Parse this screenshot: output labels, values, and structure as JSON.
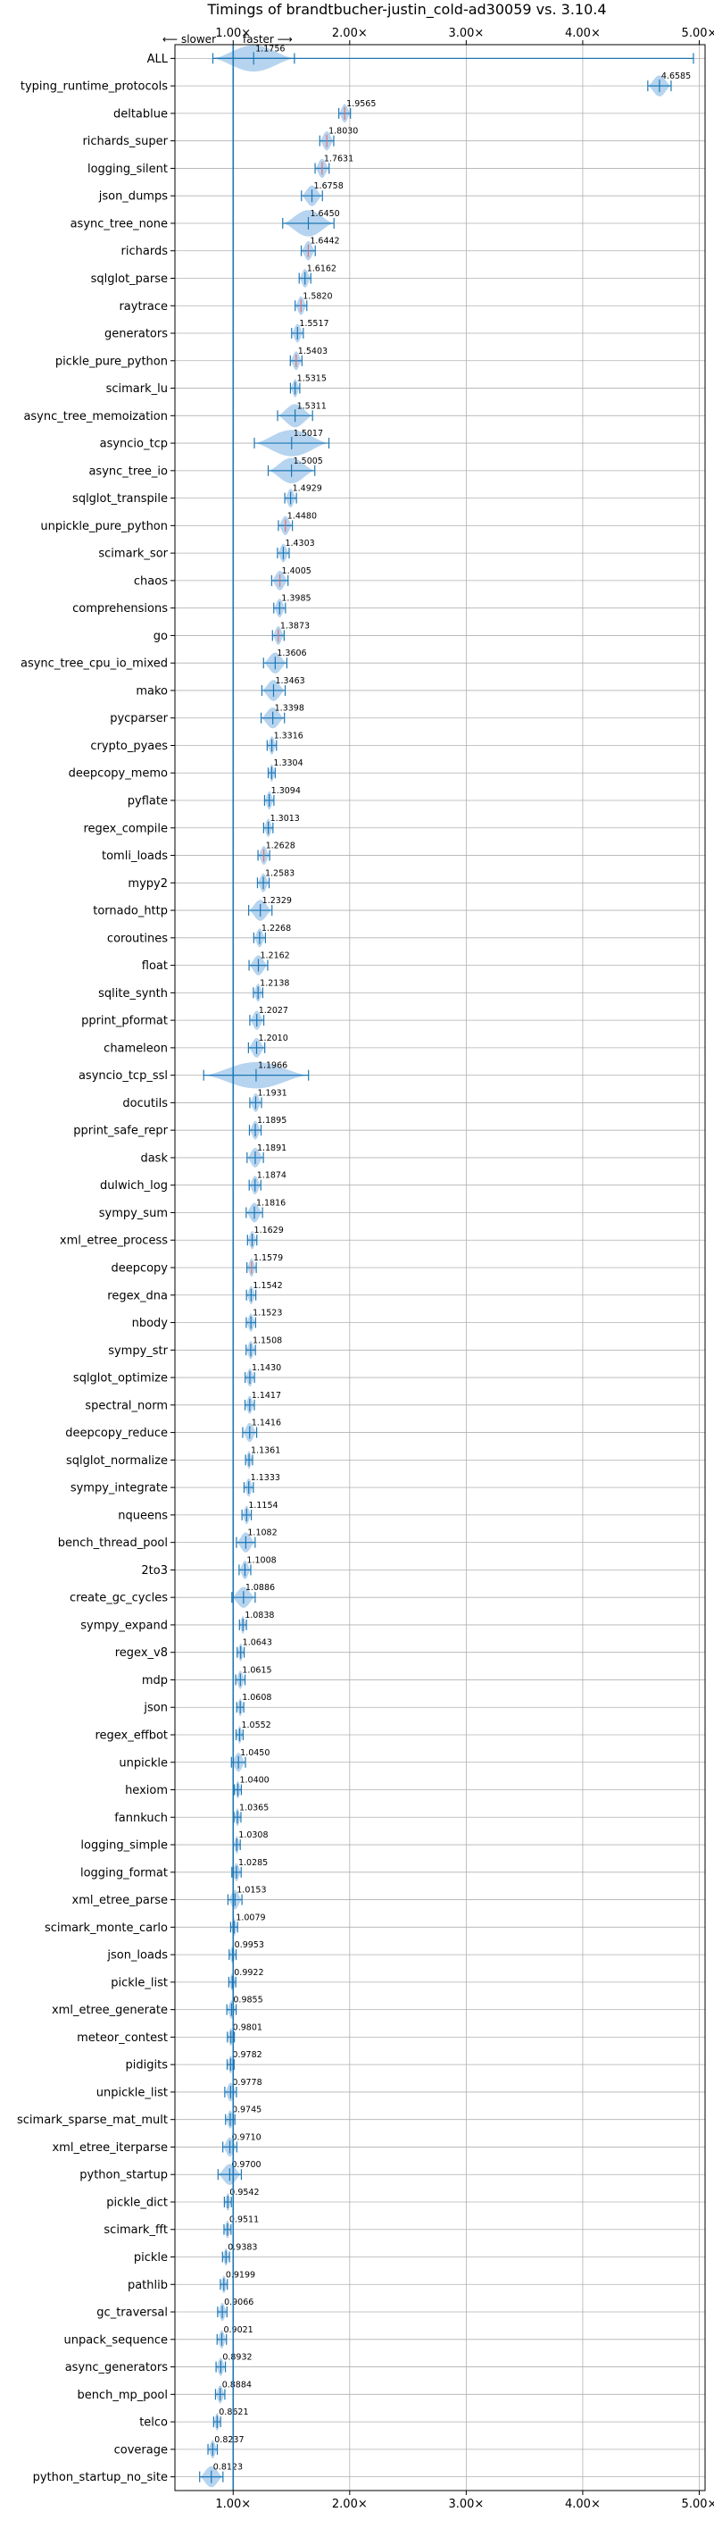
{
  "chart_data": {
    "type": "violin",
    "title": "Timings of brandtbucher-justin_cold-ad30059 vs. 3.10.4",
    "direction_labels": {
      "slower": "⟵ slower",
      "faster": "faster ⟶"
    },
    "xticks": [
      1,
      2,
      3,
      4,
      5
    ],
    "xtick_labels": [
      "1.00×",
      "2.00×",
      "3.00×",
      "4.00×",
      "5.00×"
    ],
    "xlim": [
      0.5,
      5.05
    ],
    "baseline": 1.0,
    "grid": true,
    "colors": {
      "violin": "#a9cdec",
      "line": "#1f77b4",
      "highlight": "#e07070",
      "grid": "#b0b0b0"
    },
    "categories": [
      "ALL",
      "typing_runtime_protocols",
      "deltablue",
      "richards_super",
      "logging_silent",
      "json_dumps",
      "async_tree_none",
      "richards",
      "sqlglot_parse",
      "raytrace",
      "generators",
      "pickle_pure_python",
      "scimark_lu",
      "async_tree_memoization",
      "asyncio_tcp",
      "async_tree_io",
      "sqlglot_transpile",
      "unpickle_pure_python",
      "scimark_sor",
      "chaos",
      "comprehensions",
      "go",
      "async_tree_cpu_io_mixed",
      "mako",
      "pycparser",
      "crypto_pyaes",
      "deepcopy_memo",
      "pyflate",
      "regex_compile",
      "tomli_loads",
      "mypy2",
      "tornado_http",
      "coroutines",
      "float",
      "sqlite_synth",
      "pprint_pformat",
      "chameleon",
      "asyncio_tcp_ssl",
      "docutils",
      "pprint_safe_repr",
      "dask",
      "dulwich_log",
      "sympy_sum",
      "xml_etree_process",
      "deepcopy",
      "regex_dna",
      "nbody",
      "sympy_str",
      "sqlglot_optimize",
      "spectral_norm",
      "deepcopy_reduce",
      "sqlglot_normalize",
      "sympy_integrate",
      "nqueens",
      "bench_thread_pool",
      "2to3",
      "create_gc_cycles",
      "sympy_expand",
      "regex_v8",
      "mdp",
      "json",
      "regex_effbot",
      "unpickle",
      "hexiom",
      "fannkuch",
      "logging_simple",
      "logging_format",
      "xml_etree_parse",
      "scimark_monte_carlo",
      "json_loads",
      "pickle_list",
      "xml_etree_generate",
      "meteor_contest",
      "pidigits",
      "unpickle_list",
      "scimark_sparse_mat_mult",
      "xml_etree_iterparse",
      "python_startup",
      "pickle_dict",
      "scimark_fft",
      "pickle",
      "pathlib",
      "gc_traversal",
      "unpack_sequence",
      "async_generators",
      "bench_mp_pool",
      "telco",
      "coverage",
      "python_startup_no_site"
    ],
    "values": [
      1.1756,
      4.6585,
      1.9565,
      1.803,
      1.7631,
      1.6758,
      1.645,
      1.6442,
      1.6162,
      1.582,
      1.5517,
      1.5403,
      1.5315,
      1.5311,
      1.5017,
      1.5005,
      1.4929,
      1.448,
      1.4303,
      1.4005,
      1.3985,
      1.3873,
      1.3606,
      1.3463,
      1.3398,
      1.3316,
      1.3304,
      1.3094,
      1.3013,
      1.2628,
      1.2583,
      1.2329,
      1.2268,
      1.2162,
      1.2138,
      1.2027,
      1.201,
      1.1966,
      1.1931,
      1.1895,
      1.1891,
      1.1874,
      1.1816,
      1.1629,
      1.1579,
      1.1542,
      1.1523,
      1.1508,
      1.143,
      1.1417,
      1.1416,
      1.1361,
      1.1333,
      1.1154,
      1.1082,
      1.1008,
      1.0886,
      1.0838,
      1.0643,
      1.0615,
      1.0608,
      1.0552,
      1.045,
      1.04,
      1.0365,
      1.0308,
      1.0285,
      1.0153,
      1.0079,
      0.9953,
      0.9922,
      0.9855,
      0.9801,
      0.9782,
      0.9778,
      0.9745,
      0.971,
      0.97,
      0.9542,
      0.9511,
      0.9383,
      0.9199,
      0.9066,
      0.9021,
      0.8932,
      0.8884,
      0.8621,
      0.8237,
      0.8123
    ],
    "value_labels": [
      "1.1756",
      "4.6585",
      "1.9565",
      "1.8030",
      "1.7631",
      "1.6758",
      "1.6450",
      "1.6442",
      "1.6162",
      "1.5820",
      "1.5517",
      "1.5403",
      "1.5315",
      "1.5311",
      "1.5017",
      "1.5005",
      "1.4929",
      "1.4480",
      "1.4303",
      "1.4005",
      "1.3985",
      "1.3873",
      "1.3606",
      "1.3463",
      "1.3398",
      "1.3316",
      "1.3304",
      "1.3094",
      "1.3013",
      "1.2628",
      "1.2583",
      "1.2329",
      "1.2268",
      "1.2162",
      "1.2138",
      "1.2027",
      "1.2010",
      "1.1966",
      "1.1931",
      "1.1895",
      "1.1891",
      "1.1874",
      "1.1816",
      "1.1629",
      "1.1579",
      "1.1542",
      "1.1523",
      "1.1508",
      "1.1430",
      "1.1417",
      "1.1416",
      "1.1361",
      "1.1333",
      "1.1154",
      "1.1082",
      "1.1008",
      "1.0886",
      "1.0838",
      "1.0643",
      "1.0615",
      "1.0608",
      "1.0552",
      "1.0450",
      "1.0400",
      "1.0365",
      "1.0308",
      "1.0285",
      "1.0153",
      "1.0079",
      "0.9953",
      "0.9922",
      "0.9855",
      "0.9801",
      "0.9782",
      "0.9778",
      "0.9745",
      "0.9710",
      "0.9700",
      "0.9542",
      "0.9511",
      "0.9383",
      "0.9199",
      "0.9066",
      "0.9021",
      "0.8932",
      "0.8884",
      "0.8621",
      "0.8237",
      "0.8123"
    ],
    "spreads": [
      0.35,
      0.1,
      0.05,
      0.06,
      0.06,
      0.09,
      0.22,
      0.06,
      0.05,
      0.05,
      0.05,
      0.05,
      0.04,
      0.15,
      0.32,
      0.2,
      0.05,
      0.06,
      0.05,
      0.07,
      0.05,
      0.05,
      0.1,
      0.1,
      0.1,
      0.04,
      0.03,
      0.04,
      0.04,
      0.05,
      0.05,
      0.1,
      0.05,
      0.08,
      0.04,
      0.06,
      0.07,
      0.45,
      0.05,
      0.05,
      0.07,
      0.05,
      0.07,
      0.04,
      0.04,
      0.04,
      0.04,
      0.04,
      0.04,
      0.04,
      0.06,
      0.03,
      0.04,
      0.04,
      0.08,
      0.05,
      0.1,
      0.03,
      0.03,
      0.04,
      0.03,
      0.03,
      0.06,
      0.03,
      0.03,
      0.03,
      0.04,
      0.06,
      0.03,
      0.03,
      0.03,
      0.04,
      0.03,
      0.03,
      0.05,
      0.04,
      0.06,
      0.1,
      0.03,
      0.03,
      0.03,
      0.03,
      0.04,
      0.04,
      0.04,
      0.04,
      0.03,
      0.04,
      0.1
    ],
    "highlight": [
      "deltablue",
      "richards_super",
      "logging_silent",
      "richards",
      "raytrace",
      "pickle_pure_python",
      "unpickle_pure_python",
      "chaos",
      "go",
      "tomli_loads",
      "deepcopy"
    ]
  }
}
